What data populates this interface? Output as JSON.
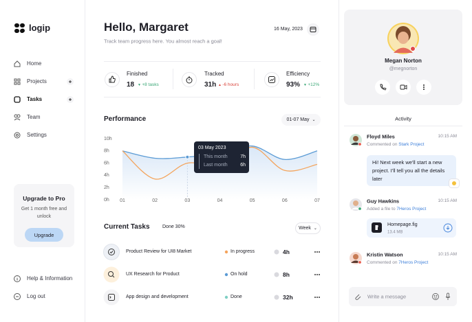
{
  "sidebar": {
    "brand": "logip",
    "nav": [
      "Home",
      "Projects",
      "Tasks",
      "Team",
      "Settings"
    ],
    "upgrade": {
      "title": "Upgrade to Pro",
      "text": "Get 1 month free and unlock",
      "button": "Upgrade"
    },
    "footer": [
      "Help & Information",
      "Log out"
    ]
  },
  "header": {
    "title": "Hello, Margaret",
    "subtitle": "Track team progress here. You almost reach a goal!",
    "date": "16 May, 2023"
  },
  "stats": [
    {
      "label": "Finished",
      "value": "18",
      "change": "+8 tasks"
    },
    {
      "label": "Tracked",
      "value": "31h",
      "change": "-6 hours"
    },
    {
      "label": "Efficiency",
      "value": "93%",
      "change": "+12%"
    }
  ],
  "performance": {
    "type": "line",
    "title": "Performance",
    "range": "01-07 May",
    "categories": [
      "01",
      "02",
      "03",
      "04",
      "05",
      "06",
      "07"
    ],
    "series": [
      {
        "name": "This month",
        "color": "#5b9bd5",
        "values": [
          8,
          6.8,
          7,
          7.6,
          8.8,
          6.6,
          8
        ]
      },
      {
        "name": "Last month",
        "color": "#f4a45c",
        "values": [
          8,
          3.4,
          6,
          5.6,
          8.6,
          4.8,
          5.8
        ]
      }
    ],
    "ylim": [
      0,
      10
    ],
    "yticks": [
      {
        "value": 0,
        "label": "0h"
      },
      {
        "value": 2,
        "label": "2h"
      },
      {
        "value": 4,
        "label": "4h"
      },
      {
        "value": 6,
        "label": "6h"
      },
      {
        "value": 8,
        "label": "8h"
      },
      {
        "value": 10,
        "label": "10h"
      }
    ],
    "tooltip": {
      "date": "03 May 2023",
      "values": [
        "7h",
        "6h"
      ]
    }
  },
  "tasks": {
    "title": "Current Tasks",
    "done": "Done 30%",
    "filter": "Week",
    "rows": [
      {
        "name": "Product Review for UI8 Market",
        "status": "In progress",
        "time": "4h"
      },
      {
        "name": "UX Research for Product",
        "status": "On hold",
        "time": "8h"
      },
      {
        "name": "App design and development",
        "status": "Done",
        "time": "32h"
      }
    ]
  },
  "profile": {
    "name": "Megan Norton",
    "handle": "@megnorton"
  },
  "activity": {
    "title": "Activity",
    "items": [
      {
        "name": "Floyd Miles",
        "time": "10:15 AM",
        "action": "Commented on",
        "project": "Stark Project",
        "message": "Hi! Next week we'll start a new project. I'll tell you all the details later"
      },
      {
        "name": "Guy Hawkins",
        "time": "10:15 AM",
        "action": "Added a file to",
        "project": "7Heros Project",
        "file": {
          "name": "Homepage.fig",
          "size": "13.4 MB"
        }
      },
      {
        "name": "Kristin Watson",
        "time": "10:15 AM",
        "action": "Commented on",
        "project": "7Heros Project"
      }
    ],
    "input": "Write a message"
  }
}
